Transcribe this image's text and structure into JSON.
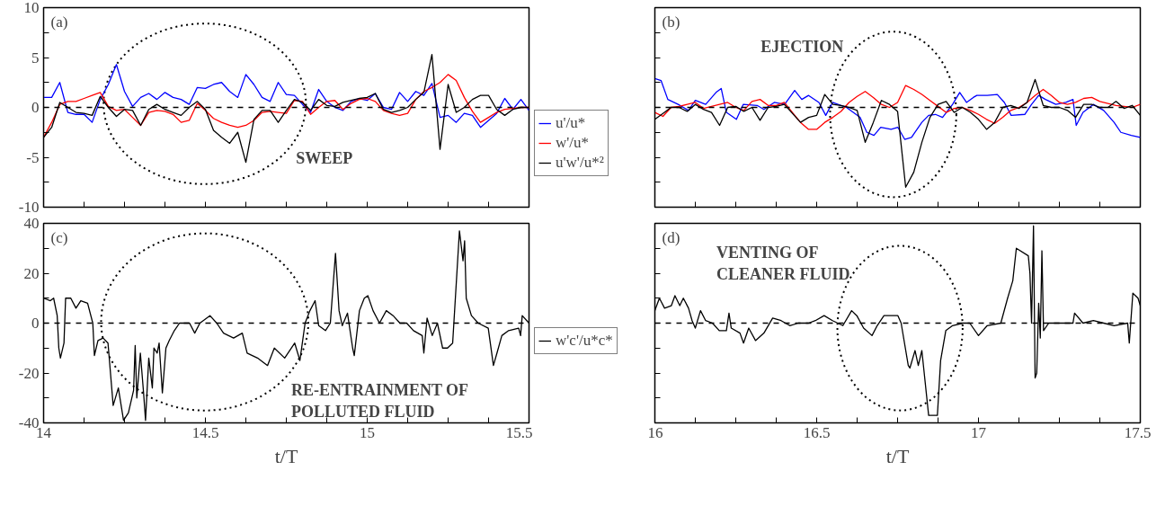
{
  "chart_data": [
    {
      "type": "line",
      "annotations": [
        "(a)",
        "SWEEP"
      ],
      "legend": "bottom right",
      "tick_labels": "y",
      "xlim": [
        14,
        15.5
      ],
      "ylim": [
        -10,
        10
      ],
      "xticks": [
        14,
        {
          "value": 14.125,
          "label": null
        },
        {
          "value": 14.25,
          "label": null
        },
        {
          "value": 14.375,
          "label": null
        },
        14.5,
        {
          "value": 14.625,
          "label": null
        },
        {
          "value": 14.75,
          "label": null
        },
        {
          "value": 14.875,
          "label": null
        },
        15,
        {
          "value": 15.125,
          "label": null
        },
        {
          "value": 15.25,
          "label": null
        },
        {
          "value": 15.375,
          "label": null
        },
        15.5
      ],
      "yticks": [
        -10,
        {
          "value": -7.5,
          "label": null
        },
        -5,
        {
          "value": -2.5,
          "label": null
        },
        0,
        {
          "value": 2.5,
          "label": null
        },
        5,
        {
          "value": 7.5,
          "label": null
        },
        10
      ],
      "ref_lines": [
        {
          "axis": "y",
          "value": 0,
          "color": "#000000",
          "line_style": "dashed"
        }
      ],
      "x": [
        14,
        14.025,
        14.05,
        14.075,
        14.1,
        14.125,
        14.15,
        14.175,
        14.2,
        14.225,
        14.25,
        14.275,
        14.3,
        14.325,
        14.35,
        14.375,
        14.4,
        14.425,
        14.45,
        14.475,
        14.5,
        14.525,
        14.55,
        14.575,
        14.6,
        14.625,
        14.65,
        14.675,
        14.7,
        14.725,
        14.75,
        14.775,
        14.8,
        14.825,
        14.85,
        14.875,
        14.9,
        14.925,
        14.95,
        14.975,
        15,
        15.025,
        15.05,
        15.075,
        15.1,
        15.125,
        15.15,
        15.175,
        15.2,
        15.225,
        15.25,
        15.275,
        15.3,
        15.325,
        15.35,
        15.375,
        15.4,
        15.425,
        15.45,
        15.475,
        15.5
      ],
      "series": [
        {
          "name": "u'/u*",
          "color": "#0000ff",
          "values": [
            1.0,
            1.0,
            2.5,
            -0.5,
            -0.7,
            -0.7,
            -1.5,
            0.8,
            2.3,
            4.3,
            1.6,
            0.1,
            1.0,
            1.4,
            0.8,
            1.5,
            1.0,
            0.8,
            0.3,
            2.0,
            1.9,
            2.3,
            2.5,
            1.6,
            1.0,
            3.3,
            2.3,
            1.0,
            0.6,
            2.5,
            1.3,
            1.2,
            0.3,
            -0.5,
            1.8,
            0.6,
            0,
            -0.3,
            0.6,
            0.9,
            0.7,
            1.4,
            0,
            -0.2,
            1.5,
            0.6,
            1.6,
            1.2,
            2.4,
            -1.0,
            -0.8,
            -1.5,
            -0.6,
            -0.8,
            -2.0,
            -1.3,
            -0.6,
            0.9,
            -0.2,
            0.8,
            -0.3
          ]
        },
        {
          "name": "w'/u*",
          "color": "#ff0000",
          "values": [
            -3.0,
            -1.5,
            0.3,
            0.6,
            0.6,
            0.9,
            1.2,
            1.5,
            0.1,
            -0.3,
            -0.2,
            -1.0,
            -1.8,
            -0.5,
            -0.3,
            -0.4,
            -0.7,
            -1.5,
            -1.3,
            0.4,
            -0.3,
            -1.1,
            -1.5,
            -1.8,
            -2.0,
            -1.8,
            -1.3,
            -0.5,
            -0.4,
            -0.5,
            -0.6,
            0.7,
            0.6,
            -0.7,
            0.0,
            0.6,
            0.7,
            -0.2,
            0.4,
            0.8,
            0.9,
            0.6,
            -0.3,
            -0.6,
            -0.8,
            -0.6,
            0.8,
            1.6,
            2.0,
            2.5,
            3.3,
            2.7,
            1.0,
            -0.4,
            -1.5,
            -1.0,
            -0.5,
            -0.2,
            -0.1,
            0.0,
            0.0
          ]
        },
        {
          "name": "u'w'/u*²",
          "color": "#000000",
          "values": [
            -3.0,
            -2.0,
            0.5,
            0.0,
            -0.5,
            -0.6,
            -0.8,
            1.1,
            0.0,
            -0.9,
            -0.2,
            -0.3,
            -1.8,
            -0.2,
            0.3,
            -0.2,
            -0.5,
            -0.8,
            0.0,
            0.6,
            -0.2,
            -2.3,
            -3.0,
            -3.6,
            -2.5,
            -5.5,
            -1.2,
            -0.3,
            -0.3,
            -1.5,
            -0.3,
            0.8,
            0.5,
            -0.3,
            0.8,
            0.2,
            0.1,
            0.5,
            0.7,
            0.9,
            1.0,
            1.4,
            -0.2,
            -0.5,
            -0.3,
            0.0,
            0.8,
            1.5,
            5.3,
            -4.2,
            2.3,
            -0.5,
            0.0,
            0.8,
            1.2,
            1.2,
            -0.2,
            -0.8,
            -0.2,
            0.0,
            0.0
          ]
        }
      ]
    },
    {
      "type": "line",
      "annotations": [
        "(b)",
        "EJECTION"
      ],
      "tick_labels": false,
      "xlim": [
        16,
        17.5
      ],
      "ylim": [
        -10,
        10
      ],
      "xticks": [
        16,
        {
          "value": 16.125,
          "label": null
        },
        {
          "value": 16.25,
          "label": null
        },
        {
          "value": 16.375,
          "label": null
        },
        16.5,
        {
          "value": 16.625,
          "label": null
        },
        {
          "value": 16.75,
          "label": null
        },
        {
          "value": 16.875,
          "label": null
        },
        17,
        {
          "value": 17.125,
          "label": null
        },
        {
          "value": 17.25,
          "label": null
        },
        {
          "value": 17.375,
          "label": null
        },
        17.5
      ],
      "yticks": [
        -10,
        {
          "value": -7.5,
          "label": null
        },
        -5,
        {
          "value": -2.5,
          "label": null
        },
        0,
        {
          "value": 2.5,
          "label": null
        },
        5,
        {
          "value": 7.5,
          "label": null
        },
        10
      ],
      "ref_lines": [
        {
          "axis": "y",
          "value": 0,
          "color": "#000000",
          "line_style": "dashed"
        }
      ],
      "x": [
        16,
        16.025,
        16.05,
        16.075,
        16.1,
        16.125,
        16.15,
        16.175,
        16.2,
        16.225,
        16.25,
        16.275,
        16.3,
        16.325,
        16.35,
        16.375,
        16.4,
        16.425,
        16.45,
        16.475,
        16.5,
        16.525,
        16.55,
        16.575,
        16.6,
        16.625,
        16.65,
        16.675,
        16.7,
        16.725,
        16.75,
        16.775,
        16.8,
        16.825,
        16.85,
        16.875,
        16.9,
        16.925,
        16.95,
        16.975,
        17,
        17.025,
        17.05,
        17.075,
        17.1,
        17.125,
        17.15,
        17.175,
        17.2,
        17.225,
        17.25,
        17.275,
        17.3,
        17.325,
        17.35,
        17.375,
        17.4,
        17.425,
        17.45,
        17.475,
        17.5
      ],
      "series": [
        {
          "color": "#0000ff",
          "x": [
            16.0,
            16.019,
            16.04,
            16.072,
            16.104,
            16.125,
            16.157,
            16.189,
            16.205,
            16.221,
            16.252,
            16.273,
            16.316,
            16.337,
            16.369,
            16.401,
            16.432,
            16.454,
            16.475,
            16.507,
            16.528,
            16.549,
            16.592,
            16.613,
            16.634,
            16.655,
            16.677,
            16.698,
            16.73,
            16.751,
            16.772,
            16.793,
            16.825,
            16.846,
            16.867,
            16.889,
            16.92,
            16.942,
            16.963,
            16.984,
            16.995,
            17.027,
            17.058,
            17.08,
            17.101,
            17.143,
            17.164,
            17.186,
            17.207,
            17.239,
            17.27,
            17.292,
            17.302,
            17.323,
            17.355,
            17.387,
            17.419,
            17.44,
            17.472,
            17.5
          ],
          "values": [
            2.9,
            2.7,
            0.8,
            0.3,
            -0.3,
            0.7,
            0.3,
            1.5,
            1.9,
            -0.5,
            -1.2,
            0.3,
            0.2,
            -0.2,
            0.5,
            0.3,
            1.7,
            0.8,
            1.2,
            0.5,
            -0.8,
            0.5,
            0,
            -0.5,
            -1.0,
            -2.5,
            -2.8,
            -2.0,
            -2.2,
            -2.0,
            -3.2,
            -3.0,
            -1.5,
            -0.8,
            -0.7,
            -1.0,
            0.3,
            1.5,
            0.5,
            1.0,
            1.2,
            1.2,
            1.3,
            0.5,
            -0.8,
            -0.7,
            0.3,
            1.2,
            0.8,
            0.3,
            0.5,
            0.8,
            -1.8,
            -0.5,
            0.3,
            -0.3,
            -1.5,
            -2.5,
            -2.8,
            -3.0
          ]
        },
        {
          "color": "#ff0000",
          "values": [
            -0.5,
            -0.9,
            0.0,
            0.1,
            0.3,
            0.5,
            -0.1,
            0.1,
            0.3,
            0.5,
            0.0,
            -0.3,
            0.6,
            0.8,
            0.2,
            0.2,
            0.5,
            -0.5,
            -1.5,
            -2.2,
            -2.2,
            -1.5,
            -1.0,
            -0.4,
            0.5,
            1.1,
            1.6,
            1.0,
            0.3,
            0.0,
            0.5,
            2.2,
            1.8,
            1.3,
            0.7,
            0.1,
            -0.5,
            -0.1,
            0.0,
            -0.3,
            -0.7,
            -1.2,
            -1.6,
            -1.0,
            -0.3,
            0.0,
            0.5,
            1.2,
            1.8,
            1.2,
            0.5,
            0.3,
            0.5,
            0.9,
            1.0,
            0.6,
            0.4,
            0.2,
            0.1,
            0.0,
            0.3
          ]
        },
        {
          "color": "#000000",
          "values": [
            -1.2,
            -0.6,
            0.0,
            0.0,
            -0.4,
            0.3,
            -0.2,
            -0.5,
            -1.8,
            0.0,
            0.1,
            -0.4,
            0.0,
            -1.3,
            0.0,
            0.1,
            0.3,
            -0.6,
            -1.5,
            -1.0,
            -0.8,
            1.3,
            0.3,
            0.2,
            0.0,
            -0.3,
            -3.5,
            -1.5,
            0.7,
            0.3,
            -0.4,
            -8.0,
            -6.5,
            -3.5,
            -1.0,
            0.3,
            0.6,
            -0.5,
            0.0,
            -0.5,
            -1.2,
            -2.2,
            -1.5,
            0.0,
            0.2,
            -0.1,
            0.5,
            2.8,
            0.2,
            0.0,
            0.0,
            -0.3,
            -1.0,
            0.3,
            0.3,
            0.0,
            0.0,
            0.6,
            -0.1,
            0.2,
            -0.8
          ]
        }
      ]
    },
    {
      "type": "line",
      "annotations": [
        "(c)",
        "RE-ENTRAINMENT OF\nPOLLUTED FLUID"
      ],
      "legend": "bottom right",
      "xlabel": "t/T",
      "xlim": [
        14,
        15.5
      ],
      "ylim": [
        -40,
        40
      ],
      "xticks": [
        14,
        {
          "value": 14.125,
          "label": null
        },
        {
          "value": 14.25,
          "label": null
        },
        {
          "value": 14.375,
          "label": null
        },
        14.5,
        {
          "value": 14.625,
          "label": null
        },
        {
          "value": 14.75,
          "label": null
        },
        {
          "value": 14.875,
          "label": null
        },
        15,
        {
          "value": 15.125,
          "label": null
        },
        {
          "value": 15.25,
          "label": null
        },
        {
          "value": 15.375,
          "label": null
        },
        15.5
      ],
      "yticks": [
        -40,
        {
          "value": -30,
          "label": null
        },
        -20,
        {
          "value": -10,
          "label": null
        },
        0,
        {
          "value": 10,
          "label": null
        },
        20,
        {
          "value": 30,
          "label": null
        },
        40
      ],
      "ref_lines": [
        {
          "axis": "y",
          "value": 0,
          "color": "#000000",
          "line_style": "dashed"
        }
      ],
      "x": [
        14.0,
        14.021,
        14.031,
        14.042,
        14.047,
        14.052,
        14.063,
        14.068,
        14.084,
        14.1,
        14.115,
        14.136,
        14.152,
        14.157,
        14.168,
        14.184,
        14.199,
        14.215,
        14.231,
        14.247,
        14.262,
        14.278,
        14.283,
        14.288,
        14.299,
        14.309,
        14.315,
        14.325,
        14.336,
        14.341,
        14.351,
        14.357,
        14.367,
        14.378,
        14.388,
        14.404,
        14.42,
        14.451,
        14.467,
        14.483,
        14.514,
        14.535,
        14.556,
        14.587,
        14.614,
        14.629,
        14.661,
        14.692,
        14.713,
        14.745,
        14.776,
        14.792,
        14.808,
        14.823,
        14.839,
        14.85,
        14.871,
        14.886,
        14.902,
        14.913,
        14.923,
        14.939,
        14.955,
        14.96,
        14.976,
        14.991,
        15.002,
        15.018,
        15.038,
        15.059,
        15.08,
        15.101,
        15.122,
        15.143,
        15.17,
        15.175,
        15.185,
        15.201,
        15.217,
        15.233,
        15.248,
        15.264,
        15.285,
        15.296,
        15.301,
        15.306,
        15.322,
        15.343,
        15.374,
        15.39,
        15.401,
        15.416,
        15.437,
        15.468,
        15.474,
        15.479,
        15.5
      ],
      "series": [
        {
          "name": "w'c'/u*c*",
          "color": "#000000",
          "values": [
            10,
            9,
            10,
            3,
            -10,
            -14,
            -8,
            10,
            10,
            6,
            9,
            8,
            0,
            -13,
            -7,
            -6,
            -8,
            -33,
            -26,
            -39,
            -36,
            -27,
            -9,
            -30,
            -12,
            -28,
            -39,
            -14,
            -26,
            -10,
            -12,
            -8,
            -28,
            -10,
            -7,
            -3,
            0,
            0,
            -4,
            0,
            3,
            0,
            -4,
            -6,
            -4,
            -12,
            -14,
            -17,
            -10,
            -14,
            -8,
            -15,
            0,
            5,
            9,
            -1,
            -3,
            0,
            28,
            5,
            -1,
            4,
            -10,
            -13,
            5,
            10,
            11,
            5,
            0,
            5,
            3,
            0,
            0,
            -3,
            -5,
            -12,
            2,
            -5,
            0,
            -10,
            -10,
            -8,
            37,
            25,
            33,
            10,
            3,
            0,
            -2,
            -17,
            -12,
            -5,
            -3,
            -2,
            -5,
            3,
            0
          ]
        }
      ]
    },
    {
      "type": "line",
      "annotations": [
        "(d)",
        "VENTING OF\nCLEANER FLUID"
      ],
      "tick_labels": "x",
      "xlabel": "t/T",
      "xlim": [
        16,
        17.5
      ],
      "ylim": [
        -40,
        40
      ],
      "xticks": [
        16,
        {
          "value": 16.125,
          "label": null
        },
        {
          "value": 16.25,
          "label": null
        },
        {
          "value": 16.375,
          "label": null
        },
        16.5,
        {
          "value": 16.625,
          "label": null
        },
        {
          "value": 16.75,
          "label": null
        },
        {
          "value": 16.875,
          "label": null
        },
        17,
        {
          "value": 17.125,
          "label": null
        },
        {
          "value": 17.25,
          "label": null
        },
        {
          "value": 17.375,
          "label": null
        },
        17.5
      ],
      "yticks": [
        -40,
        {
          "value": -30,
          "label": null
        },
        -20,
        {
          "value": -10,
          "label": null
        },
        0,
        {
          "value": 10,
          "label": null
        },
        20,
        {
          "value": 30,
          "label": null
        },
        40
      ],
      "ref_lines": [
        {
          "axis": "y",
          "value": 0,
          "color": "#000000",
          "line_style": "dashed"
        }
      ],
      "x": [
        16.0,
        16.014,
        16.03,
        16.051,
        16.062,
        16.077,
        16.088,
        16.104,
        16.115,
        16.125,
        16.141,
        16.157,
        16.178,
        16.199,
        16.221,
        16.229,
        16.236,
        16.263,
        16.274,
        16.29,
        16.311,
        16.337,
        16.364,
        16.39,
        16.417,
        16.443,
        16.475,
        16.496,
        16.523,
        16.549,
        16.581,
        16.608,
        16.624,
        16.645,
        16.671,
        16.687,
        16.708,
        16.751,
        16.761,
        16.783,
        16.788,
        16.804,
        16.814,
        16.825,
        16.846,
        16.873,
        16.883,
        16.899,
        16.92,
        16.952,
        16.973,
        17.0,
        17.027,
        17.069,
        17.09,
        17.106,
        17.117,
        17.154,
        17.159,
        17.164,
        17.17,
        17.175,
        17.18,
        17.186,
        17.191,
        17.196,
        17.201,
        17.217,
        17.249,
        17.292,
        17.297,
        17.323,
        17.355,
        17.387,
        17.419,
        17.461,
        17.466,
        17.477,
        17.493,
        17.5
      ],
      "series": [
        {
          "color": "#000000",
          "values": [
            5,
            10,
            6,
            7,
            11,
            7,
            10,
            6,
            1,
            -2,
            5,
            1,
            0,
            -3,
            -3,
            4,
            -2,
            -4,
            -8,
            -2,
            -7,
            -4,
            2,
            1,
            -1,
            0,
            0,
            1,
            3,
            1,
            -1,
            5,
            3,
            -2,
            -5,
            -1,
            3,
            3,
            0,
            -17,
            -18,
            -11,
            -17,
            -11,
            -37,
            -37,
            -15,
            -3,
            -1,
            0,
            0,
            -5,
            -1,
            0,
            10,
            17,
            30,
            27,
            20,
            0,
            39,
            -22,
            -20,
            8,
            -6,
            29,
            -3,
            0,
            0,
            0,
            4,
            0,
            1,
            0,
            -1,
            0,
            -8,
            12,
            10,
            7
          ]
        }
      ]
    }
  ]
}
